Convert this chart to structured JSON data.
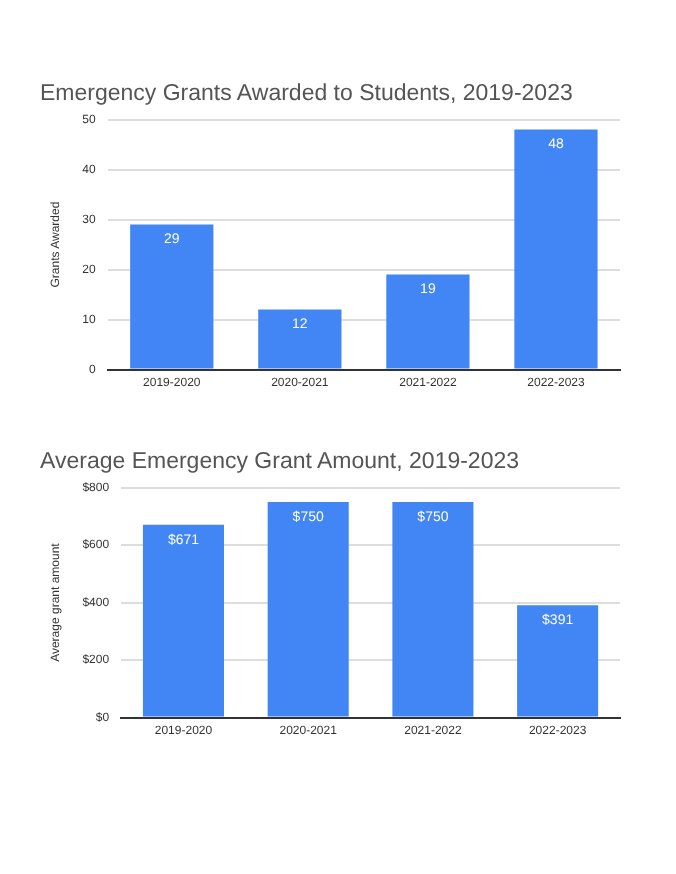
{
  "chart_data": [
    {
      "type": "bar",
      "title": "Emergency Grants Awarded to Students, 2019-2023",
      "ylabel": "Grants Awarded",
      "categories": [
        "2019-2020",
        "2020-2021",
        "2021-2022",
        "2022-2023"
      ],
      "values": [
        29,
        12,
        19,
        48
      ],
      "color": "#4285f4",
      "ylim": [
        0,
        50
      ],
      "yticks": [
        0,
        10,
        20,
        30,
        40,
        50
      ],
      "grid": "y",
      "data_labels": true
    },
    {
      "type": "bar",
      "title": "Average Emergency Grant Amount, 2019-2023",
      "ylabel": "Average grant amount",
      "categories": [
        "2019-2020",
        "2020-2021",
        "2021-2022",
        "2022-2023"
      ],
      "values": [
        671,
        750,
        750,
        391
      ],
      "value_labels": [
        "$671",
        "$750",
        "$750",
        "$391"
      ],
      "color": "#4285f4",
      "ylim": [
        0,
        800
      ],
      "yticks": [
        {
          "value": 0,
          "label": "$0"
        },
        {
          "value": 200,
          "label": "$200"
        },
        {
          "value": 400,
          "label": "$400"
        },
        {
          "value": 600,
          "label": "$600"
        },
        {
          "value": 800,
          "label": "$800"
        }
      ],
      "grid": "y"
    }
  ]
}
